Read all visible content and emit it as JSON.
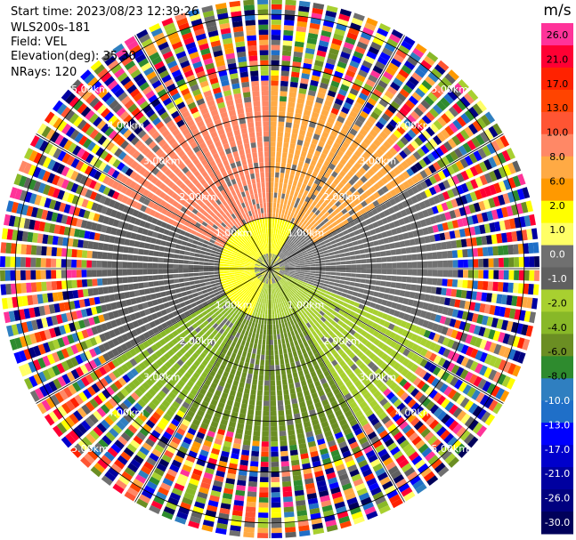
{
  "header": {
    "start_time": "Start time: 2023/08/23 12:39:26",
    "instrument": "WLS200s-181",
    "field": "Field: VEL",
    "elevation": "Elevation(deg): 35.30",
    "nrays": "NRays: 120"
  },
  "range_rings": {
    "labels": [
      "1.00km",
      "2.00km",
      "3.00km",
      "4.00km",
      "5.00km"
    ]
  },
  "colorbar": {
    "unit": "m/s",
    "ticks": [
      "26.0",
      "21.0",
      "17.0",
      "13.0",
      "10.0",
      "8.0",
      "6.0",
      "2.0",
      "1.0",
      "0.0",
      "-1.0",
      "-2.0",
      "-4.0",
      "-6.0",
      "-8.0",
      "-10.0",
      "-13.0",
      "-17.0",
      "-21.0",
      "-26.0",
      "-30.0"
    ],
    "colors": [
      "#ff3399",
      "#ff0033",
      "#ff2200",
      "#ff4400",
      "#ff5533",
      "#ff8866",
      "#ffaa44",
      "#ff9900",
      "#ffff00",
      "#ffff66",
      "#707070",
      "#606060",
      "#a8d030",
      "#88b828",
      "#6b8e23",
      "#2e8b2e",
      "#2f7fc0",
      "#1f6fc8",
      "#0000ff",
      "#0000cc",
      "#0000a0",
      "#000080",
      "#00005a"
    ]
  },
  "chart_data": {
    "type": "ppi",
    "field": "VEL",
    "nrays": 120,
    "elevation_deg": 35.3,
    "range_km": [
      0,
      5.3
    ],
    "rings_km": [
      1,
      2,
      3,
      4,
      5
    ],
    "units": "m/s",
    "coherent_max_range_km": 3.5,
    "sectors": [
      {
        "az_start": 295,
        "az_end": 360,
        "value": 8.0
      },
      {
        "az_start": 0,
        "az_end": 60,
        "value": 6.0
      },
      {
        "az_start": 60,
        "az_end": 110,
        "value": 0.0
      },
      {
        "az_start": 110,
        "az_end": 150,
        "value": -2.0
      },
      {
        "az_start": 150,
        "az_end": 210,
        "value": -6.0
      },
      {
        "az_start": 210,
        "az_end": 240,
        "value": -4.0
      },
      {
        "az_start": 240,
        "az_end": 295,
        "value": -1.0
      }
    ],
    "inner_core": {
      "range_km": 1.0,
      "value": 1.5
    }
  }
}
